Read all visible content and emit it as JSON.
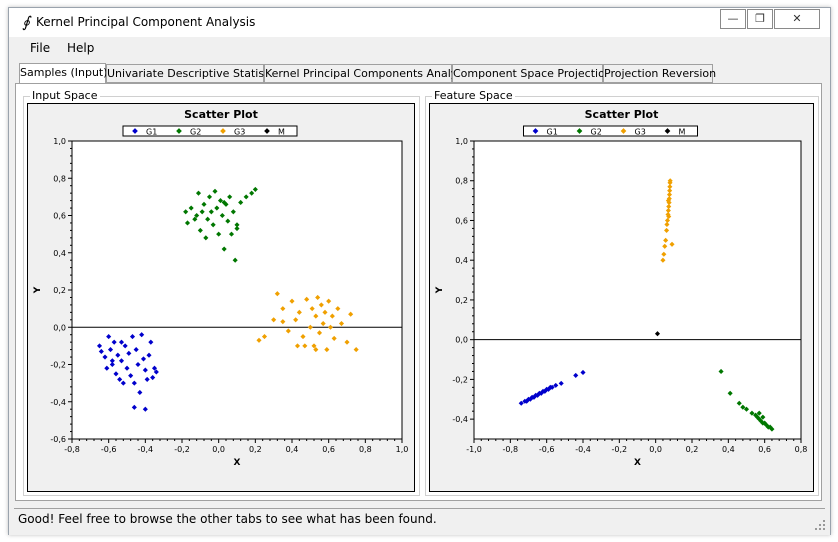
{
  "window": {
    "title": "Kernel Principal Component Analysis",
    "icon": "integral-icon"
  },
  "controls": {
    "minimize": "—",
    "restore": "❐",
    "close": "✕"
  },
  "menu": {
    "items": [
      "File",
      "Help"
    ]
  },
  "tabs": [
    "Samples (Input)",
    "Univariate Descriptive Statistics",
    "Kernel Principal Components Analysis",
    "Component Space Projection",
    "Projection Reversion"
  ],
  "active_tab": 0,
  "panels": {
    "left_title": "Input Space",
    "right_title": "Feature Space"
  },
  "status": {
    "message": "Good! Feel free to browse the other tabs to see what has been found."
  },
  "chart_data": [
    {
      "type": "scatter",
      "title": "Scatter Plot",
      "xlabel": "X",
      "ylabel": "Y",
      "xlim": [
        -0.8,
        1.0
      ],
      "ylim": [
        -0.6,
        1.0
      ],
      "x_ticks": [
        "-0,8",
        "-0,6",
        "-0,4",
        "-0,2",
        "0,0",
        "0,2",
        "0,4",
        "0,6",
        "0,8",
        "1,0"
      ],
      "y_ticks": [
        "-0,6",
        "-0,4",
        "-0,2",
        "0,0",
        "0,2",
        "0,4",
        "0,6",
        "0,8",
        "1,0"
      ],
      "legend": [
        "G1",
        "G2",
        "G3",
        "M"
      ],
      "colors": {
        "G1": "#0000cc",
        "G2": "#007700",
        "G3": "#f0a000",
        "M": "#000000"
      },
      "series": [
        {
          "name": "G1",
          "points": [
            [
              -0.65,
              -0.1
            ],
            [
              -0.64,
              -0.13
            ],
            [
              -0.62,
              -0.16
            ],
            [
              -0.6,
              -0.05
            ],
            [
              -0.59,
              -0.12
            ],
            [
              -0.58,
              -0.2
            ],
            [
              -0.57,
              -0.08
            ],
            [
              -0.56,
              -0.25
            ],
            [
              -0.55,
              -0.15
            ],
            [
              -0.54,
              -0.28
            ],
            [
              -0.53,
              -0.18
            ],
            [
              -0.52,
              -0.3
            ],
            [
              -0.51,
              -0.1
            ],
            [
              -0.5,
              -0.22
            ],
            [
              -0.49,
              -0.14
            ],
            [
              -0.48,
              -0.26
            ],
            [
              -0.47,
              -0.05
            ],
            [
              -0.46,
              -0.3
            ],
            [
              -0.45,
              -0.12
            ],
            [
              -0.44,
              -0.2
            ],
            [
              -0.43,
              -0.35
            ],
            [
              -0.42,
              -0.04
            ],
            [
              -0.41,
              -0.17
            ],
            [
              -0.4,
              -0.23
            ],
            [
              -0.39,
              -0.28
            ],
            [
              -0.38,
              -0.15
            ],
            [
              -0.37,
              -0.08
            ],
            [
              -0.36,
              -0.27
            ],
            [
              -0.35,
              -0.22
            ],
            [
              -0.34,
              -0.24
            ],
            [
              -0.46,
              -0.43
            ],
            [
              -0.4,
              -0.44
            ],
            [
              -0.58,
              -0.18
            ],
            [
              -0.53,
              -0.08
            ],
            [
              -0.61,
              -0.22
            ]
          ]
        },
        {
          "name": "G2",
          "points": [
            [
              -0.18,
              0.62
            ],
            [
              -0.17,
              0.56
            ],
            [
              -0.15,
              0.64
            ],
            [
              -0.12,
              0.6
            ],
            [
              -0.11,
              0.72
            ],
            [
              -0.1,
              0.52
            ],
            [
              -0.08,
              0.66
            ],
            [
              -0.07,
              0.48
            ],
            [
              -0.06,
              0.58
            ],
            [
              -0.05,
              0.7
            ],
            [
              -0.04,
              0.62
            ],
            [
              -0.03,
              0.55
            ],
            [
              -0.02,
              0.73
            ],
            [
              -0.01,
              0.64
            ],
            [
              0.0,
              0.5
            ],
            [
              0.01,
              0.68
            ],
            [
              0.02,
              0.6
            ],
            [
              0.03,
              0.42
            ],
            [
              0.04,
              0.66
            ],
            [
              0.05,
              0.57
            ],
            [
              0.06,
              0.7
            ],
            [
              0.07,
              0.5
            ],
            [
              0.08,
              0.62
            ],
            [
              0.09,
              0.36
            ],
            [
              0.1,
              0.55
            ],
            [
              0.12,
              0.67
            ],
            [
              0.15,
              0.7
            ],
            [
              0.18,
              0.72
            ],
            [
              0.2,
              0.74
            ],
            [
              0.1,
              0.53
            ],
            [
              -0.09,
              0.62
            ],
            [
              0.03,
              0.67
            ],
            [
              -0.13,
              0.58
            ]
          ]
        },
        {
          "name": "G3",
          "points": [
            [
              0.22,
              -0.07
            ],
            [
              0.25,
              -0.05
            ],
            [
              0.3,
              0.04
            ],
            [
              0.32,
              0.18
            ],
            [
              0.35,
              0.1
            ],
            [
              0.38,
              -0.02
            ],
            [
              0.4,
              0.14
            ],
            [
              0.42,
              0.04
            ],
            [
              0.43,
              -0.1
            ],
            [
              0.44,
              0.08
            ],
            [
              0.46,
              -0.05
            ],
            [
              0.48,
              0.15
            ],
            [
              0.5,
              0.0
            ],
            [
              0.51,
              0.1
            ],
            [
              0.52,
              -0.1
            ],
            [
              0.53,
              0.06
            ],
            [
              0.54,
              0.16
            ],
            [
              0.55,
              -0.03
            ],
            [
              0.56,
              0.12
            ],
            [
              0.57,
              0.02
            ],
            [
              0.58,
              0.08
            ],
            [
              0.59,
              -0.12
            ],
            [
              0.6,
              0.14
            ],
            [
              0.61,
              0.0
            ],
            [
              0.62,
              0.06
            ],
            [
              0.63,
              -0.06
            ],
            [
              0.65,
              0.1
            ],
            [
              0.67,
              0.02
            ],
            [
              0.7,
              -0.08
            ],
            [
              0.72,
              0.07
            ],
            [
              0.75,
              -0.12
            ],
            [
              0.47,
              -0.1
            ],
            [
              0.53,
              -0.12
            ],
            [
              0.35,
              0.03
            ]
          ]
        },
        {
          "name": "M",
          "points": []
        }
      ]
    },
    {
      "type": "scatter",
      "title": "Scatter Plot",
      "xlabel": "X",
      "ylabel": "Y",
      "xlim": [
        -1.0,
        0.8
      ],
      "ylim": [
        -0.5,
        1.0
      ],
      "x_ticks": [
        "-1,0",
        "-0,8",
        "-0,6",
        "-0,4",
        "-0,2",
        "0,0",
        "0,2",
        "0,4",
        "0,6",
        "0,8"
      ],
      "y_ticks": [
        "-0,4",
        "-0,2",
        "0,0",
        "0,2",
        "0,4",
        "0,6",
        "0,8",
        "1,0"
      ],
      "legend": [
        "G1",
        "G2",
        "G3",
        "M"
      ],
      "colors": {
        "G1": "#0000cc",
        "G2": "#007700",
        "G3": "#f0a000",
        "M": "#000000"
      },
      "series": [
        {
          "name": "G1",
          "points": [
            [
              -0.74,
              -0.32
            ],
            [
              -0.72,
              -0.31
            ],
            [
              -0.71,
              -0.31
            ],
            [
              -0.7,
              -0.3
            ],
            [
              -0.69,
              -0.3
            ],
            [
              -0.68,
              -0.29
            ],
            [
              -0.67,
              -0.29
            ],
            [
              -0.66,
              -0.28
            ],
            [
              -0.65,
              -0.28
            ],
            [
              -0.64,
              -0.27
            ],
            [
              -0.63,
              -0.27
            ],
            [
              -0.62,
              -0.26
            ],
            [
              -0.61,
              -0.26
            ],
            [
              -0.6,
              -0.25
            ],
            [
              -0.59,
              -0.25
            ],
            [
              -0.58,
              -0.24
            ],
            [
              -0.57,
              -0.24
            ],
            [
              -0.55,
              -0.23
            ],
            [
              -0.52,
              -0.22
            ],
            [
              -0.44,
              -0.18
            ],
            [
              -0.4,
              -0.165
            ]
          ]
        },
        {
          "name": "G2",
          "points": [
            [
              0.36,
              -0.16
            ],
            [
              0.41,
              -0.27
            ],
            [
              0.46,
              -0.32
            ],
            [
              0.48,
              -0.34
            ],
            [
              0.5,
              -0.35
            ],
            [
              0.53,
              -0.37
            ],
            [
              0.55,
              -0.38
            ],
            [
              0.56,
              -0.39
            ],
            [
              0.57,
              -0.4
            ],
            [
              0.58,
              -0.41
            ],
            [
              0.59,
              -0.42
            ],
            [
              0.6,
              -0.42
            ],
            [
              0.61,
              -0.43
            ],
            [
              0.62,
              -0.44
            ],
            [
              0.63,
              -0.44
            ],
            [
              0.64,
              -0.45
            ],
            [
              0.57,
              -0.37
            ],
            [
              0.59,
              -0.39
            ]
          ]
        },
        {
          "name": "G3",
          "points": [
            [
              0.04,
              0.4
            ],
            [
              0.045,
              0.43
            ],
            [
              0.05,
              0.47
            ],
            [
              0.055,
              0.5
            ],
            [
              0.06,
              0.55
            ],
            [
              0.062,
              0.58
            ],
            [
              0.065,
              0.6
            ],
            [
              0.068,
              0.63
            ],
            [
              0.07,
              0.65
            ],
            [
              0.072,
              0.67
            ],
            [
              0.074,
              0.69
            ],
            [
              0.075,
              0.71
            ],
            [
              0.076,
              0.73
            ],
            [
              0.077,
              0.75
            ],
            [
              0.078,
              0.77
            ],
            [
              0.079,
              0.79
            ],
            [
              0.08,
              0.8
            ],
            [
              0.072,
              0.62
            ],
            [
              0.09,
              0.48
            ],
            [
              0.07,
              0.7
            ]
          ]
        },
        {
          "name": "M",
          "points": [
            [
              0.01,
              0.03
            ]
          ]
        }
      ]
    }
  ]
}
